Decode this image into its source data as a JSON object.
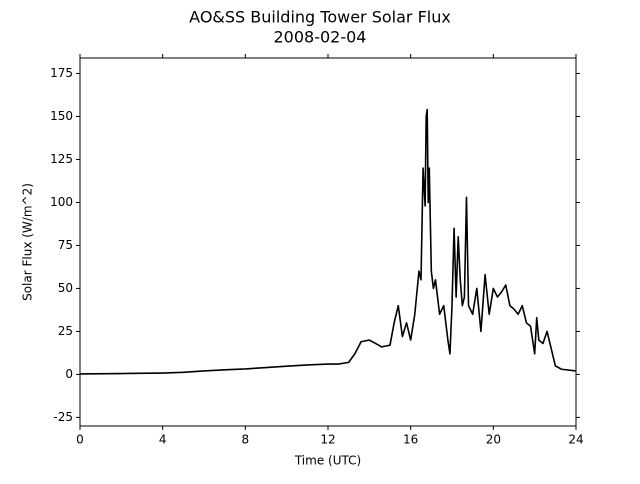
{
  "chart_data": {
    "type": "line",
    "title": "AO&SS Building Tower Solar Flux",
    "subtitle": "2008-02-04",
    "x_label": "Time (UTC)",
    "y_label": "Solar Flux (W/m^2)",
    "x": [
      0,
      2,
      4,
      5,
      6,
      7,
      8,
      9,
      10,
      11,
      12,
      12.5,
      13,
      13.3,
      13.6,
      14,
      14.3,
      14.6,
      15,
      15.2,
      15.4,
      15.6,
      15.8,
      16,
      16.2,
      16.4,
      16.5,
      16.6,
      16.7,
      16.75,
      16.8,
      16.85,
      16.9,
      17,
      17.1,
      17.2,
      17.4,
      17.6,
      17.8,
      17.9,
      18,
      18.1,
      18.2,
      18.3,
      18.4,
      18.5,
      18.6,
      18.7,
      18.8,
      19,
      19.2,
      19.4,
      19.6,
      19.8,
      20,
      20.2,
      20.4,
      20.6,
      20.8,
      21,
      21.2,
      21.4,
      21.6,
      21.8,
      22,
      22.1,
      22.2,
      22.4,
      22.6,
      22.8,
      23,
      23.3,
      24
    ],
    "series": [
      {
        "color": "#000000",
        "values": [
          0.3,
          0.5,
          0.8,
          1.2,
          2,
          2.7,
          3.2,
          4,
          4.8,
          5.5,
          6,
          6,
          7,
          12,
          19,
          20,
          18,
          16,
          17,
          30,
          40,
          22,
          30,
          20,
          35,
          60,
          55,
          120,
          98,
          150,
          154,
          100,
          120,
          60,
          50,
          55,
          35,
          40,
          20,
          12,
          40,
          85,
          45,
          80,
          55,
          40,
          45,
          103,
          40,
          35,
          50,
          25,
          58,
          35,
          50,
          45,
          48,
          52,
          40,
          38,
          35,
          40,
          30,
          28,
          12,
          33,
          20,
          18,
          25,
          15,
          5,
          3,
          2
        ]
      }
    ],
    "xlim": [
      0,
      24
    ],
    "xticks": [
      0,
      4,
      8,
      12,
      16,
      20,
      24
    ],
    "ylim": [
      -30,
      184
    ],
    "yticks": [
      -25,
      0,
      25,
      50,
      75,
      100,
      125,
      150,
      175
    ]
  }
}
